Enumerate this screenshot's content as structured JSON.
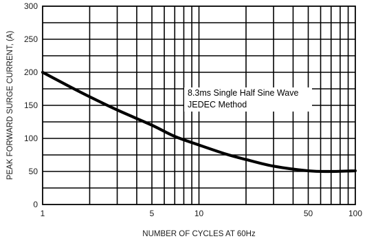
{
  "chart_data": {
    "type": "line",
    "title": "",
    "xlabel": "NUMBER OF CYCLES AT 60Hz",
    "ylabel": "PEAK FORWARD SURGE CURRENT, (A)",
    "xscale": "log",
    "xlim": [
      1,
      100
    ],
    "ylim": [
      0,
      300
    ],
    "grid": true,
    "xticks": [
      1,
      5,
      10,
      50,
      100
    ],
    "yticks": [
      0,
      50,
      100,
      150,
      200,
      250,
      300
    ],
    "series": [
      {
        "x": [
          1,
          1.5,
          2,
          3,
          5,
          7,
          10,
          15,
          20,
          30,
          50,
          70,
          100
        ],
        "y": [
          200,
          178,
          163,
          143,
          120,
          103,
          90,
          76,
          68,
          58,
          51,
          50,
          51
        ]
      }
    ],
    "annotation": {
      "lines": [
        "8.3ms Single Half Sine Wave",
        "JEDEC Method"
      ]
    }
  }
}
